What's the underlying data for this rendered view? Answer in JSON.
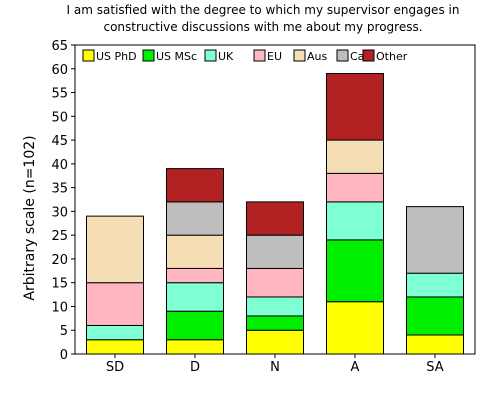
{
  "chart_data": {
    "type": "bar",
    "stacked": true,
    "title_lines": [
      "I am satisfied with the degree to which my supervisor engages in",
      "constructive discussions with me about my progress."
    ],
    "xlabel": "",
    "ylabel": "Arbitrary scale (n=102)",
    "ylim": [
      0,
      65
    ],
    "yticks": [
      0,
      5,
      10,
      15,
      20,
      25,
      30,
      35,
      40,
      45,
      50,
      55,
      60,
      65
    ],
    "categories": [
      "SD",
      "D",
      "N",
      "A",
      "SA"
    ],
    "legend_position": "top",
    "grid": false,
    "series": [
      {
        "name": "US PhD",
        "color": "#ffff00",
        "values": [
          3,
          3,
          5,
          11,
          4
        ]
      },
      {
        "name": "US MSc",
        "color": "#00ee00",
        "values": [
          0,
          6,
          3,
          13,
          8
        ]
      },
      {
        "name": "UK",
        "color": "#7fffd4",
        "values": [
          3,
          6,
          4,
          8,
          5
        ]
      },
      {
        "name": "EU",
        "color": "#ffb6c1",
        "values": [
          9,
          3,
          6,
          6,
          0
        ]
      },
      {
        "name": "Aus",
        "color": "#f5deb3",
        "values": [
          14,
          7,
          0,
          7,
          0
        ]
      },
      {
        "name": "Ca",
        "color": "#bebebe",
        "values": [
          0,
          7,
          7,
          0,
          14
        ]
      },
      {
        "name": "Other",
        "color": "#b22222",
        "values": [
          0,
          7,
          7,
          14,
          0
        ]
      }
    ]
  }
}
